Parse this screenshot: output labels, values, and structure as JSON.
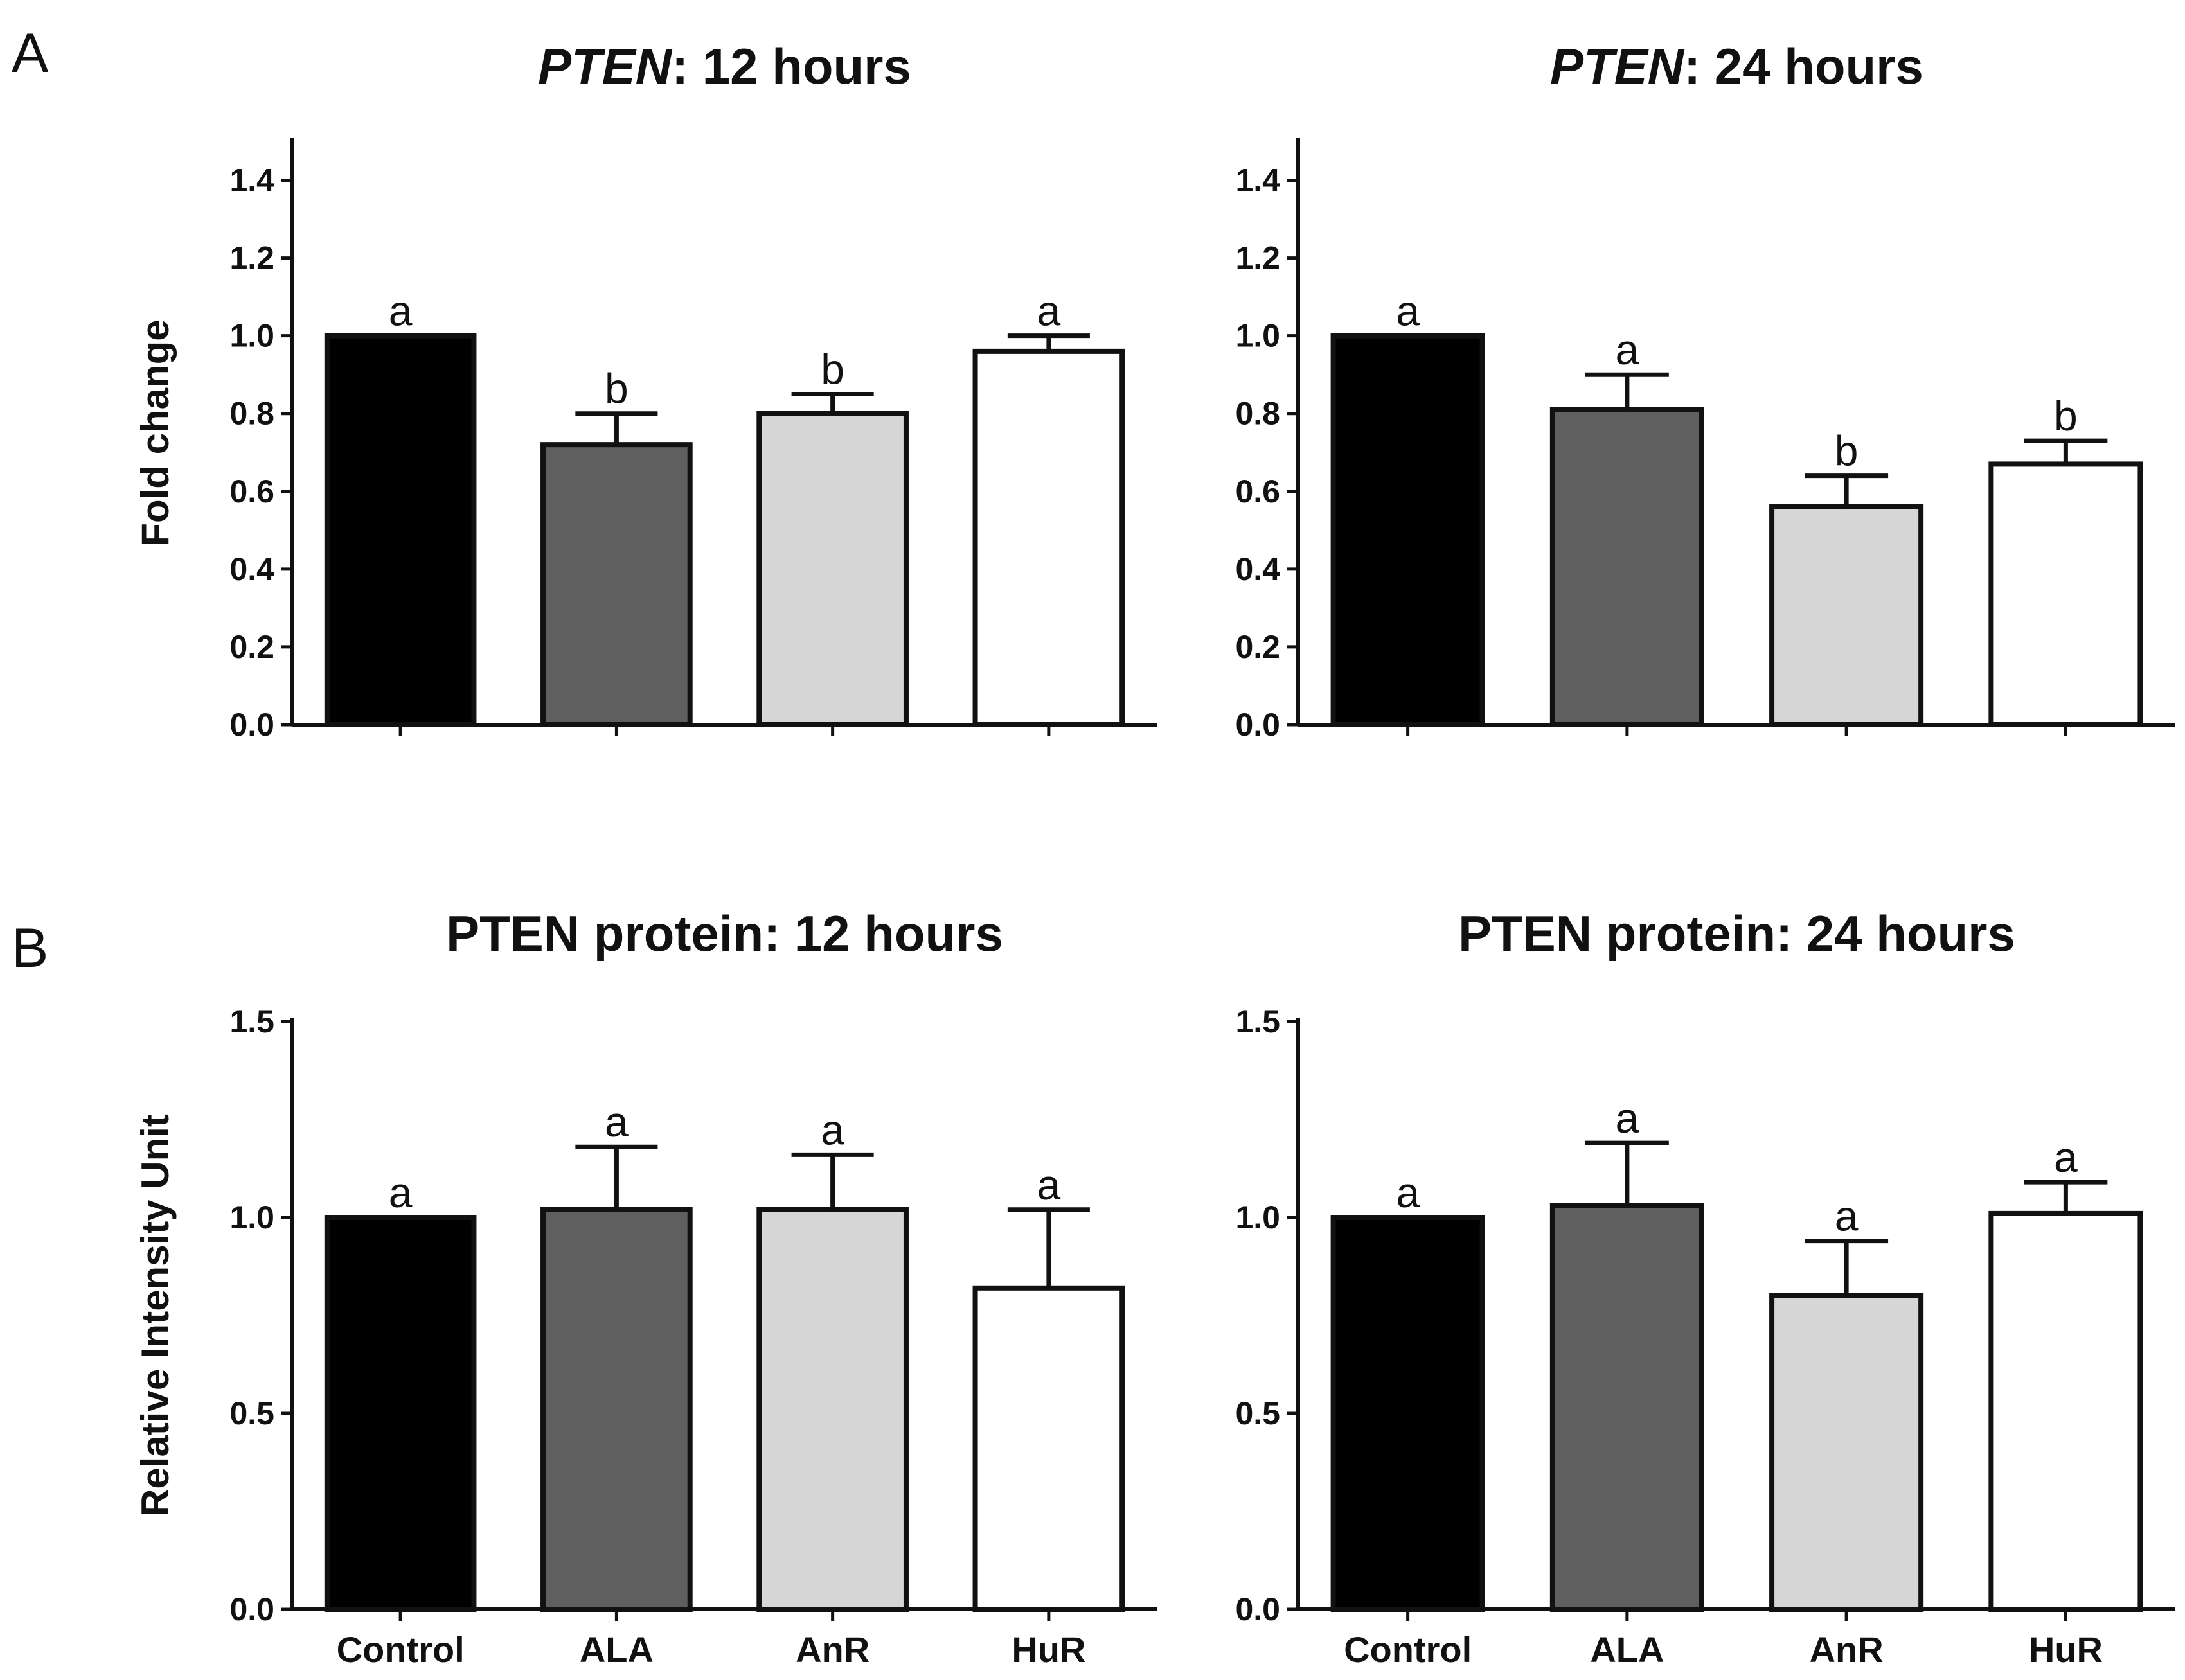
{
  "panels": [
    {
      "letter": "A"
    },
    {
      "letter": "B"
    }
  ],
  "chart_data": [
    {
      "type": "bar",
      "title": "PTEN: 12 hours",
      "title_italic": "PTEN",
      "title_rest": ": 12 hours",
      "ylabel": "Fold change",
      "xlabel": "",
      "categories": [
        "Control",
        "ALA",
        "AnR",
        "HuR"
      ],
      "show_category_labels": false,
      "values": [
        1.0,
        0.72,
        0.8,
        0.96
      ],
      "errors": [
        0.0,
        0.08,
        0.05,
        0.04
      ],
      "significance": [
        "a",
        "b",
        "b",
        "a"
      ],
      "bar_colors": [
        "#000000",
        "#5f5f5f",
        "#d6d6d6",
        "#ffffff"
      ],
      "ylim": [
        0,
        1.5
      ],
      "yticks": [
        0.0,
        0.2,
        0.4,
        0.6,
        0.8,
        1.0,
        1.2,
        1.4
      ],
      "ytick_labels": [
        "0.0",
        "0.2",
        "0.4",
        "0.6",
        "0.8",
        "1.0",
        "1.2",
        "1.4"
      ],
      "grid": false,
      "legend": "none"
    },
    {
      "type": "bar",
      "title": "PTEN: 24 hours",
      "title_italic": "PTEN",
      "title_rest": ": 24 hours",
      "ylabel": "",
      "xlabel": "",
      "categories": [
        "Control",
        "ALA",
        "AnR",
        "HuR"
      ],
      "show_category_labels": false,
      "values": [
        1.0,
        0.81,
        0.56,
        0.67
      ],
      "errors": [
        0.0,
        0.09,
        0.08,
        0.06
      ],
      "significance": [
        "a",
        "a",
        "b",
        "b"
      ],
      "bar_colors": [
        "#000000",
        "#5f5f5f",
        "#d6d6d6",
        "#ffffff"
      ],
      "ylim": [
        0,
        1.5
      ],
      "yticks": [
        0.0,
        0.2,
        0.4,
        0.6,
        0.8,
        1.0,
        1.2,
        1.4
      ],
      "ytick_labels": [
        "0.0",
        "0.2",
        "0.4",
        "0.6",
        "0.8",
        "1.0",
        "1.2",
        "1.4"
      ],
      "grid": false,
      "legend": "none"
    },
    {
      "type": "bar",
      "title": "PTEN protein: 12 hours",
      "title_italic": "",
      "title_rest": "PTEN protein: 12 hours",
      "ylabel": "Relative Intensity Unit",
      "xlabel": "",
      "categories": [
        "Control",
        "ALA",
        "AnR",
        "HuR"
      ],
      "show_category_labels": true,
      "values": [
        1.0,
        1.02,
        1.02,
        0.82
      ],
      "errors": [
        0.0,
        0.16,
        0.14,
        0.2
      ],
      "significance": [
        "a",
        "a",
        "a",
        "a"
      ],
      "bar_colors": [
        "#000000",
        "#5f5f5f",
        "#d6d6d6",
        "#ffffff"
      ],
      "ylim": [
        0,
        1.5
      ],
      "yticks": [
        0.0,
        0.5,
        1.0,
        1.5
      ],
      "ytick_labels": [
        "0.0",
        "0.5",
        "1.0",
        "1.5"
      ],
      "grid": false,
      "legend": "none"
    },
    {
      "type": "bar",
      "title": "PTEN protein: 24 hours",
      "title_italic": "",
      "title_rest": "PTEN protein: 24 hours",
      "ylabel": "",
      "xlabel": "",
      "categories": [
        "Control",
        "ALA",
        "AnR",
        "HuR"
      ],
      "show_category_labels": true,
      "values": [
        1.0,
        1.03,
        0.8,
        1.01
      ],
      "errors": [
        0.0,
        0.16,
        0.14,
        0.08
      ],
      "significance": [
        "a",
        "a",
        "a",
        "a"
      ],
      "bar_colors": [
        "#000000",
        "#5f5f5f",
        "#d6d6d6",
        "#ffffff"
      ],
      "ylim": [
        0,
        1.5
      ],
      "yticks": [
        0.0,
        0.5,
        1.0,
        1.5
      ],
      "ytick_labels": [
        "0.0",
        "0.5",
        "1.0",
        "1.5"
      ],
      "grid": false,
      "legend": "none"
    }
  ]
}
